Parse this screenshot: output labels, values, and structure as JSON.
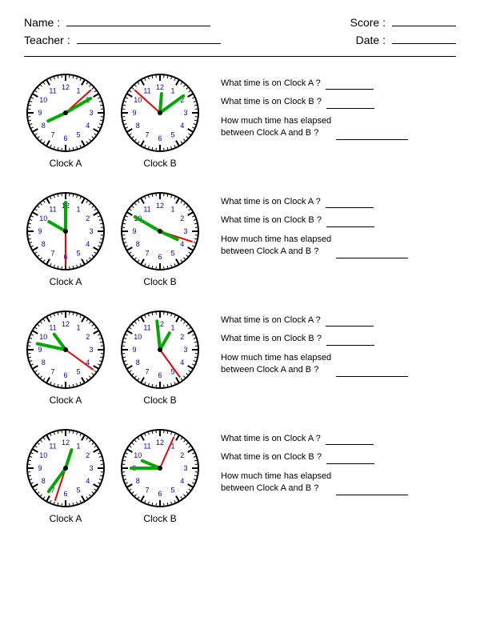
{
  "header": {
    "name_label": "Name :",
    "teacher_label": "Teacher :",
    "score_label": "Score :",
    "date_label": "Date :"
  },
  "questions": {
    "q1": "What time is on Clock A ?",
    "q2": "What time is on Clock B ?",
    "q3_line1": "How much time has elapsed",
    "q3_line2": "between Clock A and B  ?"
  },
  "labels": {
    "a": "Clock A",
    "b": "Clock B"
  },
  "style": {
    "clock_face_bg": "#ffffff",
    "clock_border": "#000000",
    "clock_border_w": 2,
    "tick_color": "#000000",
    "numeral_color": "#0000cc",
    "numeral_fontsize": 9,
    "hour_hand_color": "#00aa00",
    "hour_hand_w": 4,
    "minute_hand_color": "#00aa00",
    "minute_hand_w": 4,
    "second_hand_color": "#ee0000",
    "second_hand_w": 2,
    "clock_radius": 48
  },
  "rows": [
    {
      "a": {
        "hour": 8,
        "minute": 10,
        "second": 8
      },
      "b": {
        "hour": 12,
        "minute": 9,
        "second": 52
      }
    },
    {
      "a": {
        "hour": 10,
        "minute": 0,
        "second": 30
      },
      "b": {
        "hour": 3,
        "minute": 50,
        "second": 18
      }
    },
    {
      "a": {
        "hour": 10,
        "minute": 47,
        "second": 21
      },
      "b": {
        "hour": 12,
        "minute": 59,
        "second": 24
      }
    },
    {
      "a": {
        "hour": 12,
        "minute": 36,
        "second": 33
      },
      "b": {
        "hour": 9,
        "minute": 45,
        "second": 4
      }
    }
  ]
}
